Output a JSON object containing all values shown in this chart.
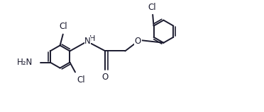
{
  "bg_color": "#ffffff",
  "line_color": "#1a1a2e",
  "line_width": 1.4,
  "font_size": 8.5,
  "figsize": [
    3.72,
    1.59
  ],
  "dpi": 100,
  "xlim": [
    -1.2,
    8.5
  ],
  "ylim": [
    -2.8,
    2.8
  ]
}
